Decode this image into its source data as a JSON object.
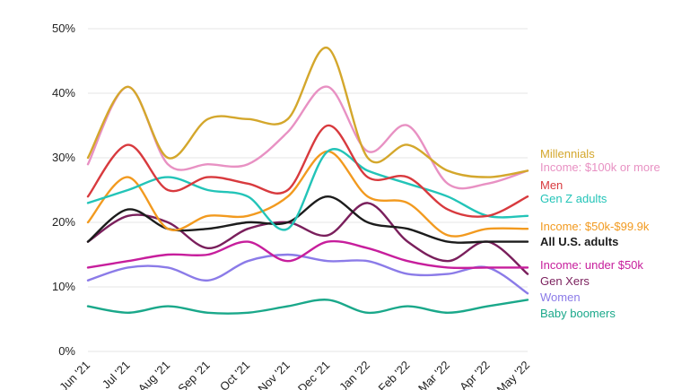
{
  "chart_data": {
    "type": "line",
    "title": "",
    "xlabel": "",
    "ylabel": "",
    "ylim": [
      0,
      50
    ],
    "y_ticks": [
      "0%",
      "10%",
      "20%",
      "30%",
      "40%",
      "50%"
    ],
    "grid": "horizontal",
    "legend_placement": "right",
    "categories": [
      "Jun '21",
      "Jul '21",
      "Aug '21",
      "Sep '21",
      "Oct '21",
      "Nov '21",
      "Dec '21",
      "Jan '22",
      "Feb '22",
      "Mar '22",
      "Apr '22",
      "May '22"
    ],
    "series": [
      {
        "name": "Millennials",
        "color": "#d4a72c",
        "values": [
          30,
          41,
          30,
          36,
          36,
          36,
          47,
          30,
          32,
          28,
          27,
          28
        ]
      },
      {
        "name": "Income: $100k or more",
        "color": "#e891c3",
        "values": [
          29,
          41,
          29,
          29,
          29,
          34,
          41,
          31,
          35,
          26,
          26,
          28
        ]
      },
      {
        "name": "Men",
        "color": "#d83a3e",
        "values": [
          24,
          32,
          25,
          27,
          26,
          25,
          35,
          27,
          27,
          22,
          21,
          24
        ]
      },
      {
        "name": "Gen Z adults",
        "color": "#23c4b8",
        "values": [
          23,
          25,
          27,
          25,
          24,
          19,
          31,
          28,
          26,
          24,
          21,
          21
        ]
      },
      {
        "name": "Income: $50k-$99.9k",
        "color": "#f29a1f",
        "values": [
          20,
          27,
          19,
          21,
          21,
          24,
          31,
          24,
          23,
          18,
          19,
          19
        ]
      },
      {
        "name": "All U.S. adults",
        "color": "#1c1c1c",
        "values": [
          17,
          22,
          19,
          19,
          20,
          20,
          24,
          20,
          19,
          17,
          17,
          17
        ]
      },
      {
        "name": "Income: under $50k",
        "color": "#c71e9c",
        "values": [
          13,
          14,
          15,
          15,
          17,
          14,
          17,
          16,
          14,
          13,
          13,
          13
        ]
      },
      {
        "name": "Gen Xers",
        "color": "#7a1f5c",
        "values": [
          17,
          21,
          20,
          16,
          19,
          20,
          18,
          23,
          17,
          14,
          17,
          12
        ]
      },
      {
        "name": "Women",
        "color": "#8b7be8",
        "values": [
          11,
          13,
          13,
          11,
          14,
          15,
          14,
          14,
          12,
          12,
          13,
          9
        ]
      },
      {
        "name": "Baby boomers",
        "color": "#1aa88a",
        "values": [
          7,
          6,
          7,
          6,
          6,
          7,
          8,
          6,
          7,
          6,
          7,
          8
        ]
      }
    ]
  }
}
